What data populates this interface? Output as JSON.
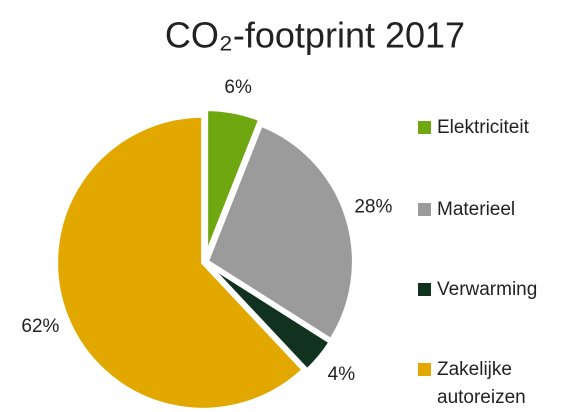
{
  "chart_data": {
    "type": "pie",
    "title": "CO₂-footprint 2017",
    "categories": [
      "Elektriciteit",
      "Materieel",
      "Verwarming",
      "Zakelijke autoreizen"
    ],
    "values": [
      6,
      28,
      4,
      62
    ],
    "value_labels": [
      "6%",
      "28%",
      "4%",
      "62%"
    ],
    "colors": [
      "#6fa710",
      "#9b9b9b",
      "#10321f",
      "#e2a800"
    ],
    "legend": "right"
  }
}
